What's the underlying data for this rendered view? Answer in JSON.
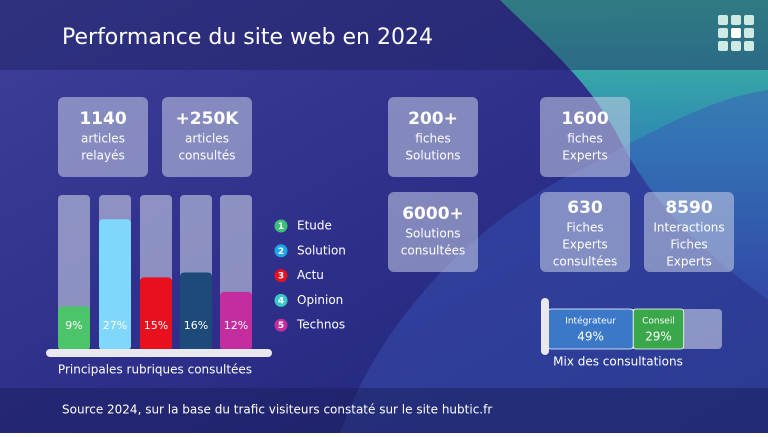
{
  "header": {
    "title": "Performance du site web en 2024"
  },
  "stats": [
    {
      "value": "1140",
      "lines": [
        "articles",
        "relayés"
      ]
    },
    {
      "value": "+250K",
      "lines": [
        "articles",
        "consultés"
      ]
    },
    {
      "value": "200+",
      "lines": [
        "fiches",
        "Solutions"
      ]
    },
    {
      "value": "6000+",
      "lines": [
        "Solutions",
        "consultées"
      ]
    },
    {
      "value": "1600",
      "lines": [
        "fiches",
        "Experts"
      ]
    },
    {
      "value": "630",
      "lines": [
        "Fiches",
        "Experts",
        "consultées"
      ]
    },
    {
      "value": "8590",
      "lines": [
        "Interactions",
        "Fiches",
        "Experts"
      ]
    }
  ],
  "chart_data": [
    {
      "type": "bar",
      "title": "Principales rubriques consultées",
      "categories": [
        "Etude",
        "Solution",
        "Actu",
        "Opinion",
        "Technos"
      ],
      "markers": [
        "1",
        "2",
        "3",
        "4",
        "5"
      ],
      "values": [
        9,
        27,
        15,
        16,
        12
      ],
      "value_labels": [
        "9%",
        "27%",
        "15%",
        "16%",
        "12%"
      ],
      "colors": [
        "#4cc46a",
        "#7fd8fb",
        "#e8101e",
        "#1d4a78",
        "#c42d9d"
      ],
      "marker_colors": [
        "#3cc07a",
        "#1ea6e8",
        "#e8101e",
        "#3cc8c8",
        "#c42d9d"
      ],
      "ylim": [
        0,
        32
      ]
    },
    {
      "type": "stacked-bar",
      "title": "Mix des consultations",
      "series": [
        {
          "name": "Intégrateur",
          "color": "#3b78c8",
          "values": [
            49
          ],
          "value_labels": [
            "49%"
          ]
        },
        {
          "name": "Conseil",
          "color": "#3aa84a",
          "values": [
            29
          ],
          "value_labels": [
            "29%"
          ]
        }
      ],
      "xlim": [
        0,
        100
      ]
    }
  ],
  "footer": {
    "source": "Source 2024, sur la base du trafic visiteurs constaté sur le site hubtic.fr"
  }
}
